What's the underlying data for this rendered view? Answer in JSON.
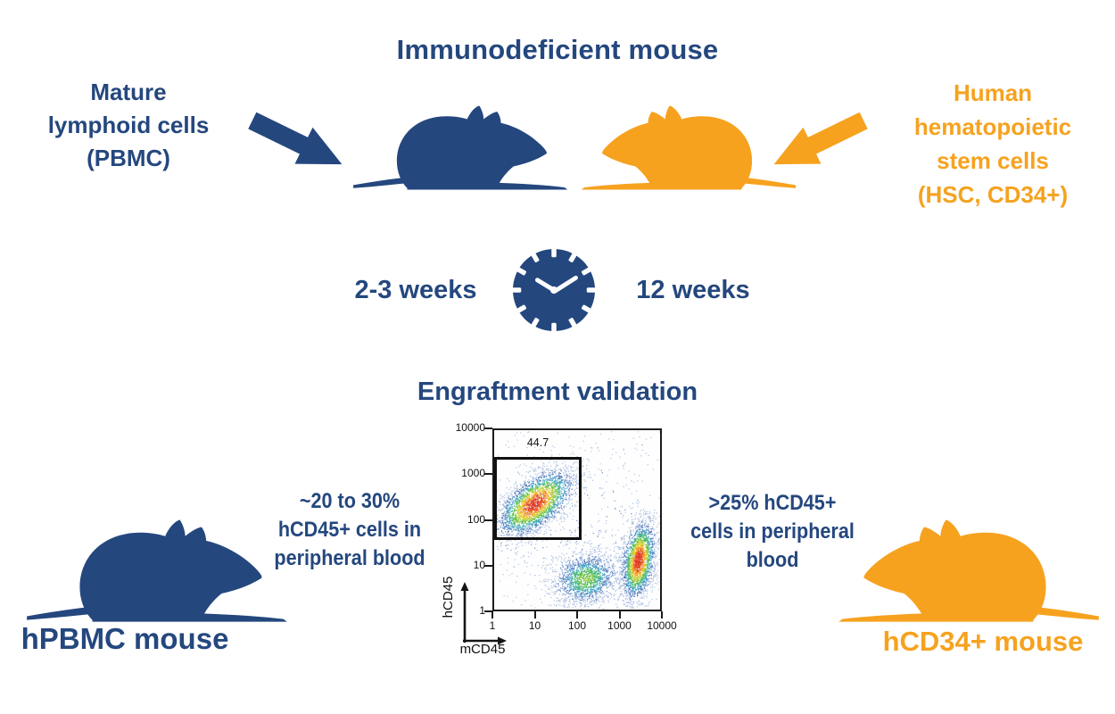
{
  "palette": {
    "blue": "#24477E",
    "orange": "#F6A21F",
    "plot_border": "#1b1b1b"
  },
  "icons": {
    "clock": "clock-icon",
    "left_arrow": "block-arrow-down-right",
    "right_arrow": "block-arrow-down-left",
    "mouse": "mouse-silhouette"
  },
  "header": {
    "title": "Immunodeficient mouse"
  },
  "left_input": {
    "label": "Mature\nlymphoid cells\n(PBMC)"
  },
  "right_input": {
    "label": "Human\nhematopoietic\nstem cells\n(HSC, CD34+)"
  },
  "timeline": {
    "left": "2-3 weeks",
    "right": "12 weeks"
  },
  "validation": {
    "heading": "Engraftment validation",
    "left_note": "~20 to 30%\nhCD45+ cells in\nperipheral blood",
    "right_note": ">25% hCD45+\ncells in peripheral\nblood"
  },
  "bottom_left": {
    "label": "hPBMC mouse"
  },
  "bottom_right": {
    "label": "hCD34+ mouse"
  },
  "chart_data": {
    "type": "scatter",
    "subtype": "flow-cytometry-density-plot",
    "title": "",
    "xlabel": "mCD45",
    "ylabel": "hCD45",
    "xscale": "log",
    "yscale": "log",
    "xlim": [
      1,
      10000
    ],
    "ylim": [
      1,
      10000
    ],
    "x_ticks": [
      1,
      10,
      100,
      1000,
      10000
    ],
    "y_ticks": [
      10000,
      1000,
      100,
      10,
      1
    ],
    "grid": false,
    "gate": {
      "label": "44.7",
      "x_range": [
        1,
        130
      ],
      "y_range": [
        35,
        2500
      ],
      "meaning": "hCD45+ gate percentage"
    },
    "clusters": [
      {
        "name": "hCD45+ human cells (inside gate)",
        "cx": 0.97,
        "cy": 2.37,
        "sx": 0.55,
        "sy": 0.27,
        "rot": 35,
        "n": 3000,
        "peak": 1.0
      },
      {
        "name": "double-negative debris",
        "cx": 2.2,
        "cy": 0.7,
        "sx": 0.42,
        "sy": 0.3,
        "rot": 12,
        "n": 1700,
        "peak": 0.52
      },
      {
        "name": "mCD45+ mouse cells",
        "cx": 3.47,
        "cy": 1.1,
        "sx": 0.2,
        "sy": 0.45,
        "rot": -10,
        "n": 2400,
        "peak": 1.02
      },
      {
        "name": "sparse background",
        "cx": 2.0,
        "cy": 2.0,
        "sx": 1.6,
        "sy": 1.4,
        "rot": 0,
        "n": 750,
        "peak": 0.12
      }
    ],
    "colormap": [
      "#a3b8dc",
      "#4a76bb",
      "#3aa8c4",
      "#47bb4d",
      "#a8d03a",
      "#f0cb2d",
      "#f08b26",
      "#e23a20"
    ]
  }
}
